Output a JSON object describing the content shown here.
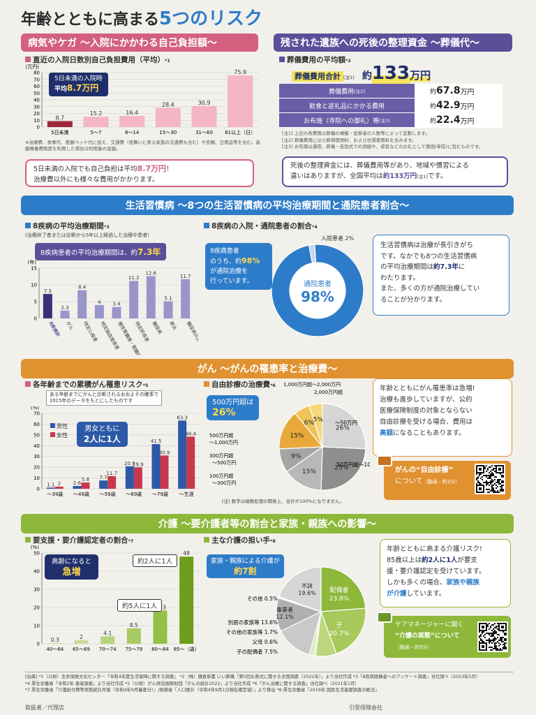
{
  "title_pre": "年齢とともに高まる",
  "title_em": "5つのリスク",
  "s1": {
    "band": "病気やケガ 〜入院にかかわる自己負担額〜",
    "head": "直近の入院日数別自己負担費用（平均）",
    "head_ref": "*1",
    "unit": "(万円)",
    "callout_l1": "5日未満の入院時",
    "callout_l2": "平均",
    "callout_val": "8.7万円",
    "note": "※治療費、食事代、差額ベッド代に加え、交通費（見舞いに来る家族の交通費も含む）や衣類、日用品等を含む。高額療養費制度を利用した場合は利用後の金額。",
    "summary_a": "5日未満の入院でも自己負担は平均",
    "summary_val": "8.7万円",
    "summary_b": "！",
    "summary_c": "治療費以外にも様々な費用がかかります。"
  },
  "s2": {
    "band": "残された遺族への死後の整理資金 〜葬儀代〜",
    "head": "葬儀費用の平均額",
    "head_ref": "*2",
    "total_label": "葬儀費用合計",
    "total_note": "[注1]",
    "total_pre": "約",
    "total_val": "133",
    "total_unit": "万円",
    "rows": [
      {
        "label": "葬儀費用",
        "note": "[注2]",
        "pre": "約",
        "val": "67.8",
        "unit": "万円"
      },
      {
        "label": "飲食と返礼品にかかる費用",
        "note": "",
        "pre": "約",
        "val": "42.9",
        "unit": "万円"
      },
      {
        "label": "お布施（寺院への御礼）等",
        "note": "[注3]",
        "pre": "約",
        "val": "22.4",
        "unit": "万円"
      }
    ],
    "notes": [
      "[注1] 上記の各費用は葬儀の規模・会葬者の人数等によって変動します。",
      "[注2] 葬儀費用には火葬場使用料、および式場使用料を含みます。",
      "[注3] お布施は通夜、葬儀・告別式での読経や、戒名などのお礼として僧侶(寺院)に包むものです。"
    ],
    "summary_a": "死後の整理資金には、葬儀費用等があり、地域や慣習による",
    "summary_b": "違いはありますが、全国平均は",
    "summary_val": "約133万円",
    "summary_note": "[注1]",
    "summary_c": "です。"
  },
  "s3": {
    "band": "生活習慣病 〜8つの生活習慣病の平均治療期間と通院患者割合〜",
    "head1": "8疾病の平均治療期間",
    "head1_ref": "*3",
    "sub1": "(治療終了者または診断から5年以上経過した治療中患者)",
    "callout_a": "8疾病患者の平均治療期間は、約",
    "callout_val": "7.3年",
    "unit": "(年)",
    "head2": "8疾病の入院・通院患者の割合",
    "head2_ref": "*4",
    "donut_label_in": "入院患者 2%",
    "callout2_l1": "8疾病患者",
    "callout2_l2a": "のうち、約",
    "callout2_val": "98%",
    "callout2_l3": "が通院治療を",
    "callout2_l4": "行っています。",
    "donut_center_label": "通院患者",
    "donut_center_val": "98%",
    "text_l1": "生活習慣病は治療が長引きがち",
    "text_l2": "です。なかでも8つの生活習慣病",
    "text_l3a": "の平均治療期間は",
    "text_val": "約7.3年",
    "text_l3b": "に",
    "text_l4": "わたります。",
    "text_l5": "また、多くの方が通院治療してい",
    "text_l6": "ることが分かります。"
  },
  "s4": {
    "band": "がん 〜がんの罹患率と治療費〜",
    "head1": "各年齢までの累積がん罹患リスク",
    "head1_ref": "*5",
    "sub1_l1": "ある年齢までにがんと診断されるおおよその確率で",
    "sub1_l2": "2015年のデータをもとにしたものです",
    "unit": "(%)",
    "legend_male": "男性",
    "legend_female": "女性",
    "callout_l1": "男女ともに",
    "callout_l2": "2人に1人",
    "head2": "自由診療の治療費",
    "head2_ref": "*6",
    "pie_callout_l1": "500万円超は",
    "pie_callout_val": "26%",
    "pie_note": "[注] 数字は端数処理の関係上、合計が100%になりません。",
    "text_l1": "年齢とともにがん罹患率は急増!",
    "text_l2": "治療も進歩していますが、公的",
    "text_l3": "医療保険制度の対象とならない",
    "text_l4": "自由診療を受ける場合、費用は",
    "text_val": "高額",
    "text_l5b": "になることもあります。",
    "video_l1": "がんの“自由診療”",
    "video_l2": "について",
    "video_l2s": "（動画・約2分）"
  },
  "s5": {
    "band": "介護 〜要介護者等の割合と家族・親族への影響〜",
    "head1": "要支援・要介護認定者の割合",
    "head1_ref": "*7",
    "unit": "(%)",
    "callout_l1": "高齢になると",
    "callout_l2": "急増",
    "tag_a": "約2人に1人",
    "tag_b": "約5人に1人",
    "axis_suffix": "(歳)",
    "head2": "主な介護の担い手",
    "head2_ref": "*8",
    "callout2_l1": "家族・親族による介護が",
    "callout2_val": "約7割",
    "text_l1": "年齢とともに高まる介護リスク!",
    "text_l2": "85歳以上は",
    "text_val": "約2人に1人",
    "text_l2b": "が要支",
    "text_l3": "援・要介護認定を受けています。",
    "text_l4a": "しかも多くの場合、",
    "text_val2": "家族や親族",
    "text_l5": "が介護",
    "text_l5b": "しています。",
    "video_l1": "ケアマネージャーに聞く",
    "video_l2": "“介護の実態”について",
    "video_l3": "（動画・約5分）"
  },
  "sources": [
    "[出典] *1（公財）生命保険文化センター「令和4年度生活保障に関する調査」 *2（株）鎌倉新書 いい葬儀「第5回お葬式に関する全国調査（2022年）」より当社作成 *3「8疾病経験者へのアンケート調査」当社調べ（2023年5月）",
    "*4 厚生労働省「令和2年 患者調査」より当社作成 *5（公財）がん研究振興財団「がんの統計2022」より当社作成 *6「がん治療に関する調査」当社調べ（2021年1月）",
    "*7 厚生労働省「介護給付費等実態統計月報（令和4年9月審査分）」/総務省「人口推計（令和4年9月1日現在確定値）」より算出 *8 厚生労働省「2019年 国民生活基礎調査の概況」"
  ],
  "footer_left": "取扱者／代理店",
  "footer_right": "引受保険会社",
  "colors": {
    "pink": "#d2607e",
    "purple": "#5b4f9a",
    "blue": "#2d7cc9",
    "orange": "#e09130",
    "green": "#8db83a",
    "navy": "#1f2f6b"
  },
  "chart_data": [
    {
      "type": "bar",
      "title": "直近の入院日数別自己負担費用（平均）",
      "ylabel": "(万円)",
      "categories": [
        "5日未満",
        "5〜7",
        "8〜14",
        "15〜30",
        "31〜60",
        "61以上（日）"
      ],
      "values": [
        8.7,
        15.2,
        16.4,
        28.4,
        30.9,
        75.9
      ],
      "ylim": [
        0,
        80
      ],
      "yticks": [
        0,
        10,
        20,
        30,
        40,
        50,
        60,
        70,
        80
      ],
      "grid": true
    },
    {
      "type": "bar",
      "title": "8疾病の平均治療期間",
      "ylabel": "(年)",
      "categories": [
        "8疾病計",
        "がん",
        "特定心疾患",
        "特定脳血管疾患",
        "慢性腎臓病・腎臓病",
        "特定肝疾患",
        "糖尿病",
        "膵炎",
        "糖尿病の3大合併症"
      ],
      "values": [
        7.3,
        2.3,
        8.4,
        4.0,
        3.4,
        11.2,
        12.6,
        5.1,
        11.7
      ],
      "ylim": [
        0,
        15
      ],
      "yticks": [
        0,
        5,
        10,
        15
      ],
      "grid": true
    },
    {
      "type": "pie",
      "title": "8疾病の入院・通院患者の割合",
      "labels": [
        "通院患者",
        "入院患者"
      ],
      "values": [
        98,
        2
      ]
    },
    {
      "type": "bar",
      "title": "各年齢までの累積がん罹患リスク",
      "ylabel": "(%)",
      "categories": [
        "〜39歳",
        "〜49歳",
        "〜59歳",
        "〜69歳",
        "〜79歳",
        "〜生涯"
      ],
      "series": [
        {
          "name": "男性",
          "values": [
            1.1,
            2.6,
            7.7,
            20.9,
            41.5,
            63.3
          ]
        },
        {
          "name": "女性",
          "values": [
            2.0,
            5.8,
            11.7,
            19.9,
            30.9,
            48.4
          ]
        }
      ],
      "ylim": [
        0,
        70
      ],
      "yticks": [
        0,
        10,
        20,
        30,
        40,
        50,
        60,
        70
      ],
      "grid": true
    },
    {
      "type": "pie",
      "title": "自由診療の治療費",
      "labels": [
        "〜50万円",
        "50万円超〜100万円",
        "100万円超〜300万円",
        "300万円超〜500万円",
        "500万円超〜1,000万円",
        "1,000万円超〜2,000万円",
        "2,000万円超"
      ],
      "values": [
        26,
        25,
        15,
        9,
        15,
        6,
        5
      ]
    },
    {
      "type": "bar",
      "title": "要支援・要介護認定者の割合",
      "ylabel": "(%)",
      "categories": [
        "40〜64",
        "65〜69",
        "70〜74",
        "75〜79",
        "80〜84",
        "85〜（歳）"
      ],
      "values": [
        0.3,
        2.0,
        4.1,
        8.5,
        18.3,
        48.0
      ],
      "ylim": [
        0,
        50
      ],
      "yticks": [
        0,
        10,
        20,
        30,
        40,
        50
      ],
      "grid": true
    },
    {
      "type": "pie",
      "title": "主な介護の担い手",
      "labels": [
        "配偶者",
        "子",
        "子の配偶者",
        "父母",
        "その他の家族等",
        "別居の家族等",
        "事業者",
        "その他",
        "不詳"
      ],
      "values": [
        23.8,
        20.7,
        7.5,
        0.6,
        1.7,
        13.6,
        12.1,
        0.5,
        19.6
      ]
    }
  ]
}
